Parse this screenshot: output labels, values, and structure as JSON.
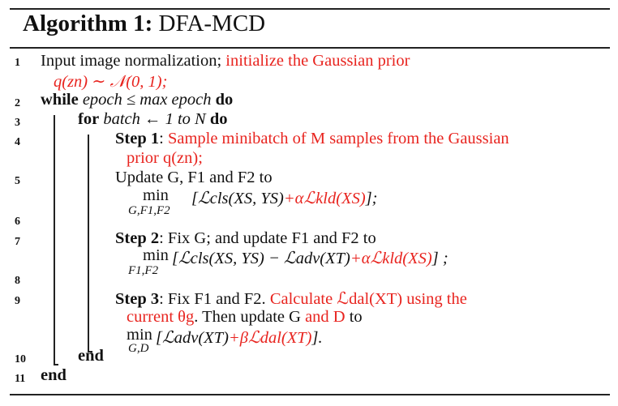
{
  "algorithm": {
    "label": "Algorithm 1:",
    "name": "DFA-MCD"
  },
  "line_numbers": [
    "1",
    "2",
    "3",
    "4",
    "5",
    "6",
    "7",
    "8",
    "9",
    "10",
    "11"
  ],
  "lines": {
    "l1a": "Input image normalization; ",
    "l1b": "initialize the Gaussian prior",
    "l1c": "q(zn) ∼ 𝒩(0, 1);",
    "l2_kw1": "while",
    "l2_mid": " epoch ≤ max epoch ",
    "l2_kw2": "do",
    "l3_kw1": "for",
    "l3_mid": " batch ← 1 to N ",
    "l3_kw2": "do",
    "l4_step": "Step 1",
    "l4_colon": ": ",
    "l4_red": "Sample minibatch of M samples from the Gaussian",
    "l4b_red": "prior q(zn);",
    "l5": "Update G, F1 and F2 to",
    "l6_min": "min",
    "l6_sub": "G,F1,F2",
    "l6_black": "[ℒcls(XS, YS)",
    "l6_red": "+αℒkld(XS)",
    "l6_end": "];",
    "l7_step": "Step 2",
    "l7_rest": ": Fix G; and update F1 and F2 to",
    "l8_min": "min",
    "l8_sub": "F1,F2",
    "l8_black": "[ℒcls(XS, YS) − ℒadv(XT)",
    "l8_red": "+αℒkld(XS)",
    "l8_end": "] ;",
    "l9_step": "Step 3",
    "l9_black": ": Fix F1 and F2. ",
    "l9_red": "Calculate ℒdal(XT) using the",
    "l9b_red1": "current θg",
    "l9b_black1": ". Then update G ",
    "l9b_red2": "and D",
    "l9b_black2": " to",
    "l9c_min": "min",
    "l9c_sub": "G,D",
    "l9c_black": "[ℒadv(XT)",
    "l9c_red": "+βℒdal(XT)",
    "l9c_end": "].",
    "l10_kw": "end",
    "l11_kw": "end"
  },
  "colors": {
    "highlight": "#e8241f",
    "text": "#111111"
  }
}
